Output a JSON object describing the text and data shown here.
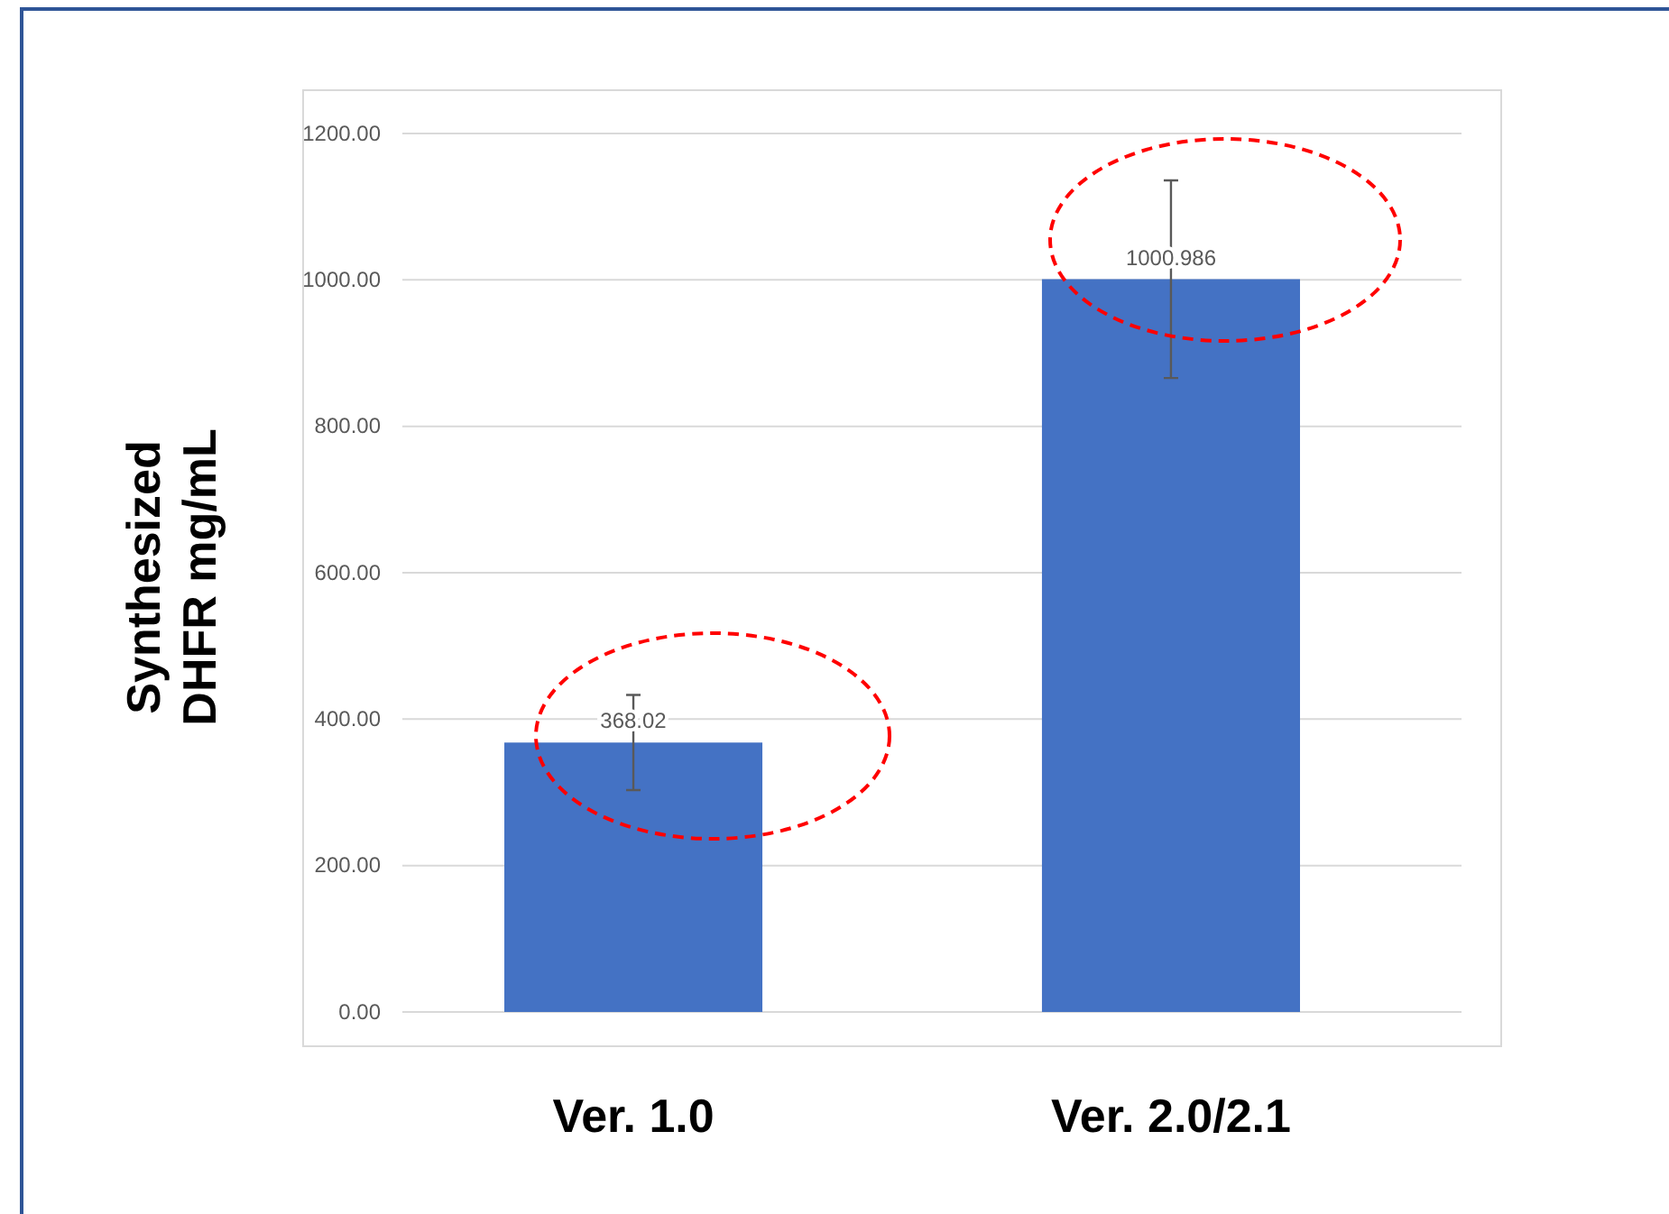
{
  "chart_data": {
    "type": "bar",
    "ylabel": "Synthesized\nDHFR mg/mL",
    "categories": [
      "Ver. 1.0",
      "Ver. 2.0/2.1"
    ],
    "values": [
      368.02,
      1000.986
    ],
    "errors": [
      65,
      135
    ],
    "color": "#4472c4",
    "data_labels": true,
    "ylim": [
      0,
      1200
    ],
    "yticks": [
      {
        "value": 0,
        "label": "0.00"
      },
      {
        "value": 200,
        "label": "200.00"
      },
      {
        "value": 400,
        "label": "400.00"
      },
      {
        "value": 600,
        "label": "600.00"
      },
      {
        "value": 800,
        "label": "800.00"
      },
      {
        "value": 1000,
        "label": "1000.00"
      },
      {
        "value": 1200,
        "label": "1200.00"
      }
    ],
    "grid": "y"
  }
}
